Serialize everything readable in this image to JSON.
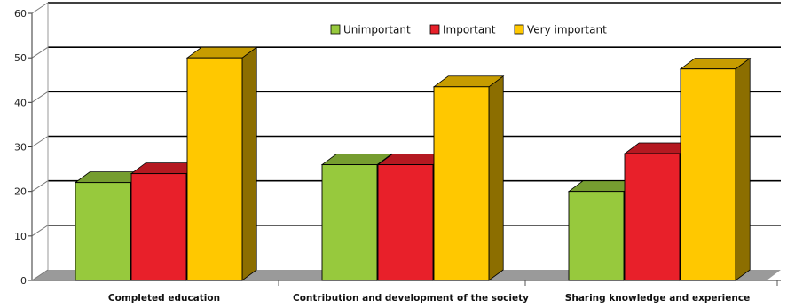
{
  "chart_data": {
    "type": "bar",
    "categories": [
      "Completed education",
      "Contribution and development of the society",
      "Sharing knowledge and experience"
    ],
    "series": [
      {
        "name": "Unimportant",
        "values": [
          22,
          26,
          20
        ],
        "color": "#97c93d"
      },
      {
        "name": "Important",
        "values": [
          24,
          26,
          28.5
        ],
        "color": "#e8202a"
      },
      {
        "name": "Very important",
        "values": [
          50,
          43.5,
          47.5
        ],
        "color": "#ffc800"
      }
    ],
    "ylim": [
      0,
      60
    ],
    "yticks": [
      0,
      10,
      20,
      30,
      40,
      50,
      60
    ],
    "title": "",
    "xlabel": "",
    "ylabel": "",
    "grid": true,
    "legend_position": "top-center",
    "style": "3d-clustered-bar"
  }
}
